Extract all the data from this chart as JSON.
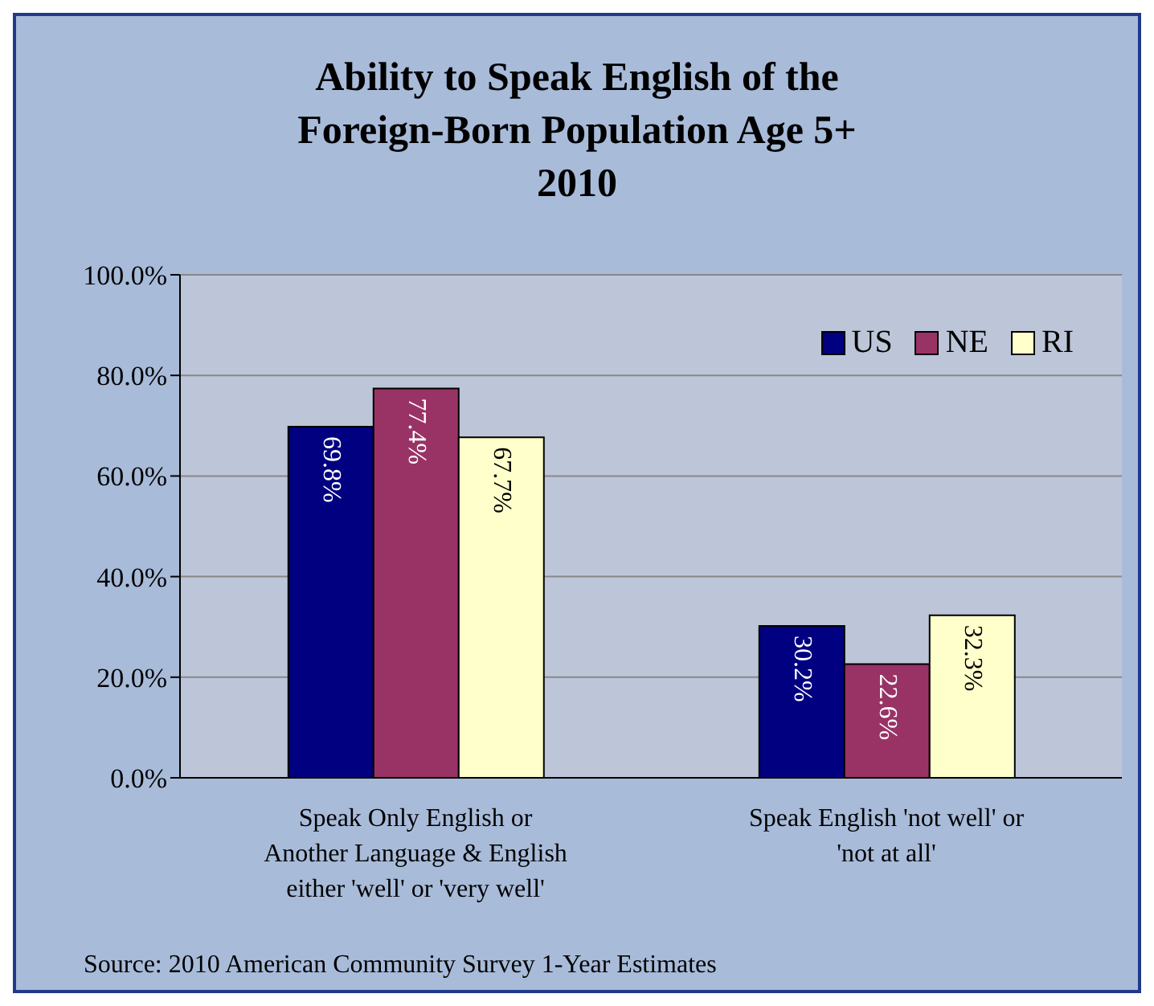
{
  "chart_data": {
    "type": "bar",
    "title": "Ability to Speak English of the\nForeign-Born Population Age 5+\n2010",
    "categories": [
      "Speak Only English or Another Language & English either 'well' or 'very well'",
      "Speak English 'not well' or 'not at all'"
    ],
    "series": [
      {
        "name": "US",
        "color": "#000080",
        "values": [
          69.8,
          30.2
        ],
        "value_labels": [
          "69.8%",
          "30.2%"
        ]
      },
      {
        "name": "NE",
        "color": "#993366",
        "values": [
          77.4,
          22.6
        ],
        "value_labels": [
          "77.4%",
          "22.6%"
        ]
      },
      {
        "name": "RI",
        "color": "#ffffcc",
        "values": [
          67.7,
          32.3
        ],
        "value_labels": [
          "67.7%",
          "32.3%"
        ]
      }
    ],
    "ylim": [
      0,
      100
    ],
    "yticks": [
      {
        "value": 0,
        "label": "0.0%"
      },
      {
        "value": 20,
        "label": "20.0%"
      },
      {
        "value": 40,
        "label": "40.0%"
      },
      {
        "value": 60,
        "label": "60.0%"
      },
      {
        "value": 80,
        "label": "80.0%"
      },
      {
        "value": 100,
        "label": "100.0%"
      }
    ],
    "grid": "y",
    "legend": "top right",
    "annotations": [
      "Source: 2010 American Community Survey 1-Year Estimates"
    ]
  }
}
